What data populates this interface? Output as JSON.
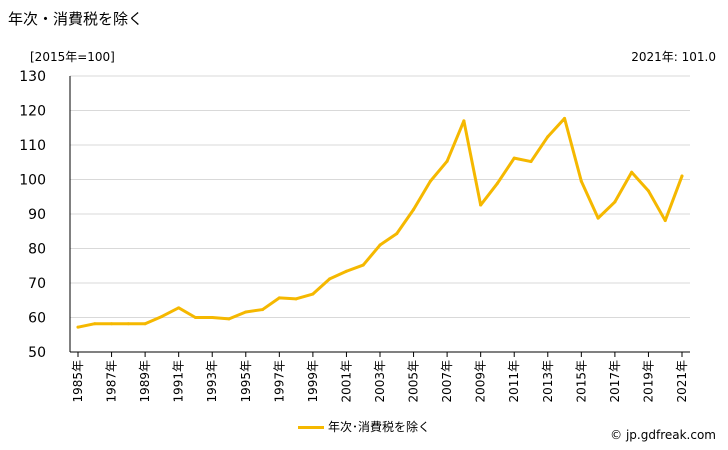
{
  "header": {
    "title": "年次・消費税を除く",
    "unit_label": "[2015年=100]",
    "latest_label": "2021年: 101.0"
  },
  "footer": {
    "legend_label": "年次･消費税を除く",
    "source": "© jp.gdfreak.com"
  },
  "colors": {
    "series": "#f5b800",
    "grid": "#d9d9d9",
    "axis": "#000000"
  },
  "chart_data": {
    "type": "line",
    "title": "年次・消費税を除く",
    "ylabel": "[2015年=100]",
    "ylim": [
      50,
      130
    ],
    "yticks": [
      50,
      60,
      70,
      80,
      90,
      100,
      110,
      120,
      130
    ],
    "grid": true,
    "legend_position": "bottom",
    "x": [
      1985,
      1986,
      1987,
      1988,
      1989,
      1990,
      1991,
      1992,
      1993,
      1994,
      1995,
      1996,
      1997,
      1998,
      1999,
      2000,
      2001,
      2002,
      2003,
      2004,
      2005,
      2006,
      2007,
      2008,
      2009,
      2010,
      2011,
      2012,
      2013,
      2014,
      2015,
      2016,
      2017,
      2018,
      2019,
      2020,
      2021
    ],
    "xtick_labels": [
      "1985年",
      "1987年",
      "1989年",
      "1991年",
      "1993年",
      "1995年",
      "1997年",
      "1999年",
      "2001年",
      "2003年",
      "2005年",
      "2007年",
      "2009年",
      "2011年",
      "2013年",
      "2015年",
      "2017年",
      "2019年",
      "2021年"
    ],
    "series": [
      {
        "name": "年次･消費税を除く",
        "values": [
          57.2,
          58.2,
          58.2,
          58.2,
          58.2,
          60.3,
          62.8,
          60.0,
          60.0,
          59.6,
          61.6,
          62.3,
          65.7,
          65.4,
          66.8,
          71.2,
          73.4,
          75.2,
          81.0,
          84.3,
          91.3,
          99.5,
          105.3,
          117.0,
          92.6,
          98.9,
          106.2,
          105.2,
          112.4,
          117.7,
          99.5,
          88.8,
          93.5,
          102.1,
          96.7,
          88.1,
          101.0
        ]
      }
    ]
  }
}
